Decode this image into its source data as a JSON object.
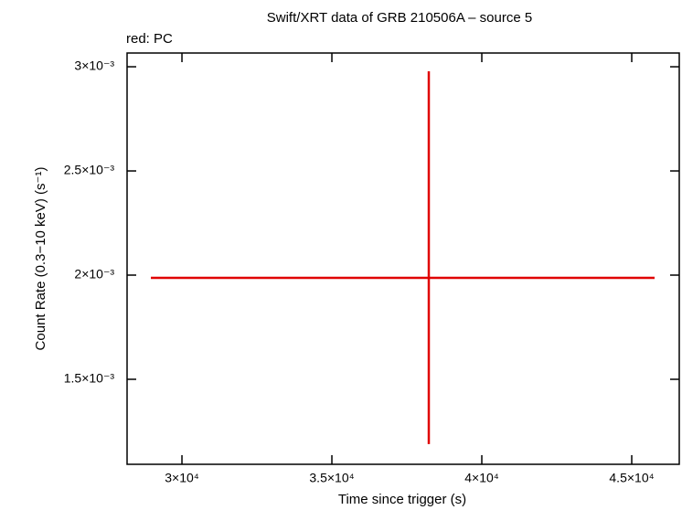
{
  "chart_data": {
    "type": "errorbar",
    "title": "Swift/XRT data of GRB 210506A – source 5",
    "subtitle": "red: PC",
    "xlabel": "Time since trigger (s)",
    "ylabel": "Count Rate (0.3−10 keV) (s⁻¹)",
    "color": "#e00000",
    "x": [
      38232
    ],
    "values": [
      0.001987
    ],
    "xerr": [
      [
        9269,
        7530
      ]
    ],
    "yerr": [
      [
        0.000798,
        0.000991
      ]
    ],
    "xlim": [
      28170,
      46585
    ],
    "ylim": [
      0.001092,
      0.003066
    ],
    "xticks": [
      {
        "value": 30000,
        "label": "3×10⁴"
      },
      {
        "value": 35000,
        "label": "3.5×10⁴"
      },
      {
        "value": 40000,
        "label": "4×10⁴"
      },
      {
        "value": 45000,
        "label": "4.5×10⁴"
      }
    ],
    "yticks": [
      {
        "value": 0.0015,
        "label": "1.5×10⁻³"
      },
      {
        "value": 0.002,
        "label": "2×10⁻³"
      },
      {
        "value": 0.0025,
        "label": "2.5×10⁻³"
      },
      {
        "value": 0.003,
        "label": "3×10⁻³"
      }
    ]
  }
}
